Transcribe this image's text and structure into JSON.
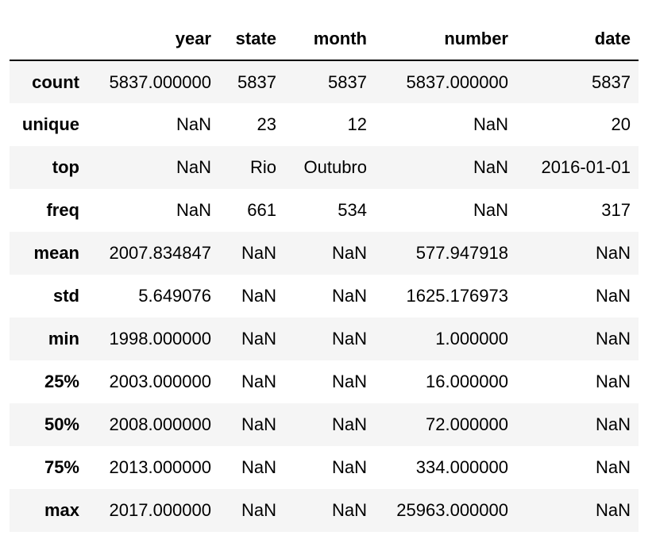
{
  "table": {
    "columns": [
      "year",
      "state",
      "month",
      "number",
      "date"
    ],
    "rows": [
      {
        "index": "count",
        "cells": [
          "5837.000000",
          "5837",
          "5837",
          "5837.000000",
          "5837"
        ]
      },
      {
        "index": "unique",
        "cells": [
          "NaN",
          "23",
          "12",
          "NaN",
          "20"
        ]
      },
      {
        "index": "top",
        "cells": [
          "NaN",
          "Rio",
          "Outubro",
          "NaN",
          "2016-01-01"
        ]
      },
      {
        "index": "freq",
        "cells": [
          "NaN",
          "661",
          "534",
          "NaN",
          "317"
        ]
      },
      {
        "index": "mean",
        "cells": [
          "2007.834847",
          "NaN",
          "NaN",
          "577.947918",
          "NaN"
        ]
      },
      {
        "index": "std",
        "cells": [
          "5.649076",
          "NaN",
          "NaN",
          "1625.176973",
          "NaN"
        ]
      },
      {
        "index": "min",
        "cells": [
          "1998.000000",
          "NaN",
          "NaN",
          "1.000000",
          "NaN"
        ]
      },
      {
        "index": "25%",
        "cells": [
          "2003.000000",
          "NaN",
          "NaN",
          "16.000000",
          "NaN"
        ]
      },
      {
        "index": "50%",
        "cells": [
          "2008.000000",
          "NaN",
          "NaN",
          "72.000000",
          "NaN"
        ]
      },
      {
        "index": "75%",
        "cells": [
          "2013.000000",
          "NaN",
          "NaN",
          "334.000000",
          "NaN"
        ]
      },
      {
        "index": "max",
        "cells": [
          "2017.000000",
          "NaN",
          "NaN",
          "25963.000000",
          "NaN"
        ]
      }
    ]
  },
  "colors": {
    "stripe": "#f5f5f5",
    "background": "#ffffff",
    "text": "#000000",
    "header_rule": "#000000"
  }
}
